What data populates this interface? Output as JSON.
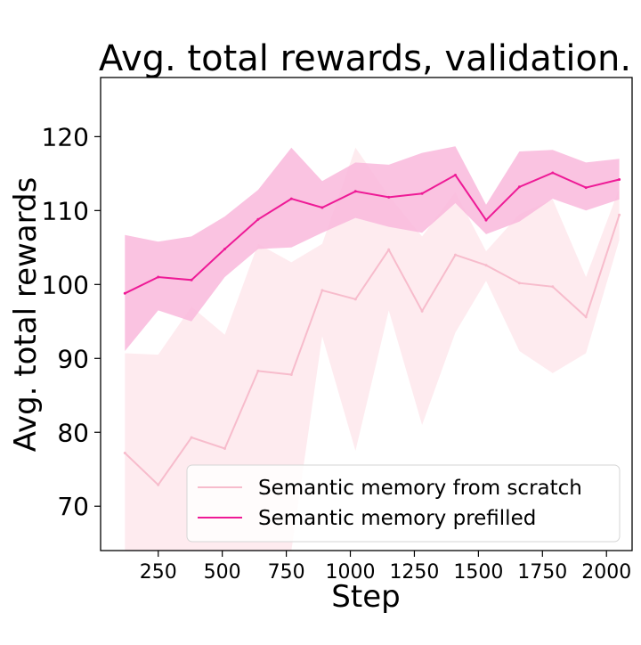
{
  "chart_data": {
    "type": "line",
    "title": "Avg. total rewards, validation.",
    "xlabel": "Step",
    "ylabel": "Avg. total rewards",
    "xlim": [
      25,
      2100
    ],
    "ylim": [
      64,
      128
    ],
    "xticks": [
      250,
      500,
      750,
      1000,
      1250,
      1500,
      1750,
      2000
    ],
    "yticks": [
      70,
      80,
      90,
      100,
      110,
      120
    ],
    "grid": false,
    "legend_position": "lower right",
    "x": [
      120,
      250,
      380,
      510,
      640,
      770,
      890,
      1020,
      1150,
      1280,
      1410,
      1530,
      1660,
      1790,
      1920,
      2050
    ],
    "series": [
      {
        "name": "Semantic memory from scratch",
        "color": "#f7bccc",
        "band_color": "#fde4ea",
        "values": [
          77.2,
          72.9,
          79.3,
          77.8,
          88.3,
          87.8,
          99.2,
          98.0,
          104.7,
          96.4,
          104.0,
          102.6,
          100.2,
          99.7,
          95.6,
          109.4
        ],
        "lower": [
          64.0,
          64.0,
          64.0,
          64.0,
          64.0,
          64.0,
          93.0,
          77.5,
          96.5,
          81.0,
          93.5,
          100.5,
          91.0,
          88.0,
          90.7,
          106.0
        ],
        "upper": [
          90.7,
          90.5,
          97.0,
          93.2,
          105.5,
          103.0,
          105.5,
          118.5,
          112.0,
          106.5,
          112.5,
          104.5,
          109.5,
          111.5,
          101.0,
          113.0
        ]
      },
      {
        "name": "Semantic memory prefilled",
        "color": "#ee1a96",
        "band_color": "#f9b9dc",
        "values": [
          98.8,
          101.0,
          100.6,
          104.8,
          108.8,
          111.6,
          110.4,
          112.6,
          111.8,
          112.3,
          114.8,
          108.7,
          113.2,
          115.1,
          113.1,
          114.2
        ],
        "lower": [
          91.0,
          96.5,
          95.0,
          101.0,
          104.8,
          105.0,
          107.0,
          109.0,
          107.8,
          107.0,
          111.0,
          106.8,
          108.5,
          111.6,
          110.0,
          111.5
        ],
        "upper": [
          106.7,
          105.8,
          106.5,
          109.2,
          112.8,
          118.5,
          114.0,
          116.5,
          116.2,
          117.8,
          118.7,
          110.8,
          118.0,
          118.2,
          116.5,
          117.0
        ]
      }
    ]
  }
}
